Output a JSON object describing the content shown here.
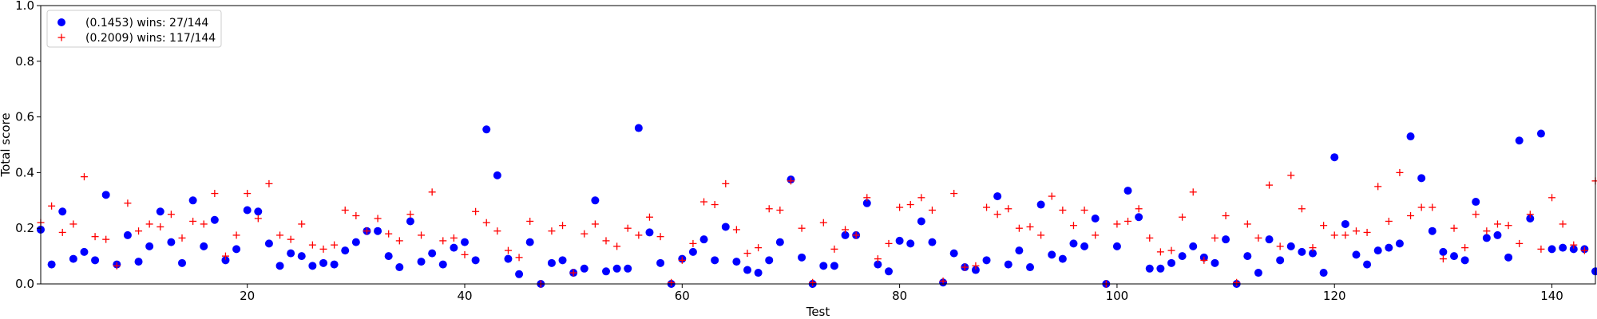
{
  "chart_data": {
    "type": "scatter",
    "xlabel": "Test",
    "ylabel": "Total score",
    "xlim": [
      1,
      144
    ],
    "ylim": [
      0,
      1.0
    ],
    "xticks": [
      20,
      40,
      60,
      80,
      100,
      120,
      140
    ],
    "yticks": [
      0.0,
      0.2,
      0.4,
      0.6,
      0.8,
      1.0
    ],
    "grid": false,
    "legend_position": "top-left",
    "series": [
      {
        "name": "(0.1453) wins: 27/144",
        "marker": "circle",
        "color": "#0000ff",
        "x": [
          1,
          2,
          3,
          4,
          5,
          6,
          7,
          8,
          9,
          10,
          11,
          12,
          13,
          14,
          15,
          16,
          17,
          18,
          19,
          20,
          21,
          22,
          23,
          24,
          25,
          26,
          27,
          28,
          29,
          30,
          31,
          32,
          33,
          34,
          35,
          36,
          37,
          38,
          39,
          40,
          41,
          42,
          43,
          44,
          45,
          46,
          47,
          48,
          49,
          50,
          51,
          52,
          53,
          54,
          55,
          56,
          57,
          58,
          59,
          60,
          61,
          62,
          63,
          64,
          65,
          66,
          67,
          68,
          69,
          70,
          71,
          72,
          73,
          74,
          75,
          76,
          77,
          78,
          79,
          80,
          81,
          82,
          83,
          84,
          85,
          86,
          87,
          88,
          89,
          90,
          91,
          92,
          93,
          94,
          95,
          96,
          97,
          98,
          99,
          100,
          101,
          102,
          103,
          104,
          105,
          106,
          107,
          108,
          109,
          110,
          111,
          112,
          113,
          114,
          115,
          116,
          117,
          118,
          119,
          120,
          121,
          122,
          123,
          124,
          125,
          126,
          127,
          128,
          129,
          130,
          131,
          132,
          133,
          134,
          135,
          136,
          137,
          138,
          139,
          140,
          141,
          142,
          143,
          144
        ],
        "y": [
          0.195,
          0.07,
          0.26,
          0.09,
          0.115,
          0.085,
          0.32,
          0.07,
          0.175,
          0.08,
          0.135,
          0.26,
          0.15,
          0.075,
          0.3,
          0.135,
          0.23,
          0.085,
          0.125,
          0.265,
          0.26,
          0.145,
          0.065,
          0.11,
          0.1,
          0.065,
          0.075,
          0.07,
          0.12,
          0.15,
          0.19,
          0.19,
          0.1,
          0.06,
          0.225,
          0.08,
          0.11,
          0.07,
          0.13,
          0.15,
          0.085,
          0.555,
          0.39,
          0.09,
          0.035,
          0.15,
          0.0,
          0.075,
          0.085,
          0.04,
          0.055,
          0.3,
          0.045,
          0.055,
          0.055,
          0.56,
          0.185,
          0.075,
          0.0,
          0.09,
          0.115,
          0.16,
          0.085,
          0.205,
          0.08,
          0.05,
          0.04,
          0.085,
          0.15,
          0.375,
          0.095,
          0.0,
          0.065,
          0.065,
          0.175,
          0.175,
          0.29,
          0.07,
          0.045,
          0.155,
          0.145,
          0.225,
          0.15,
          0.005,
          0.11,
          0.06,
          0.05,
          0.085,
          0.315,
          0.07,
          0.12,
          0.06,
          0.285,
          0.105,
          0.09,
          0.145,
          0.135,
          0.235,
          0.0,
          0.135,
          0.335,
          0.24,
          0.055,
          0.055,
          0.075,
          0.1,
          0.135,
          0.095,
          0.075,
          0.16,
          0.0,
          0.1,
          0.04,
          0.16,
          0.085,
          0.135,
          0.115,
          0.11,
          0.04,
          0.455,
          0.215,
          0.105,
          0.07,
          0.12,
          0.13,
          0.145,
          0.53,
          0.38,
          0.19,
          0.115,
          0.1,
          0.085,
          0.295,
          0.165,
          0.175,
          0.095,
          0.515,
          0.235,
          0.54,
          0.125,
          0.13,
          0.125,
          0.125,
          0.045
        ]
      },
      {
        "name": "(0.2009) wins: 117/144",
        "marker": "plus",
        "color": "#ff0000",
        "x": [
          1,
          2,
          3,
          4,
          5,
          6,
          7,
          8,
          9,
          10,
          11,
          12,
          13,
          14,
          15,
          16,
          17,
          18,
          19,
          20,
          21,
          22,
          23,
          24,
          25,
          26,
          27,
          28,
          29,
          30,
          31,
          32,
          33,
          34,
          35,
          36,
          37,
          38,
          39,
          40,
          41,
          42,
          43,
          44,
          45,
          46,
          47,
          48,
          49,
          50,
          51,
          52,
          53,
          54,
          55,
          56,
          57,
          58,
          59,
          60,
          61,
          62,
          63,
          64,
          65,
          66,
          67,
          68,
          69,
          70,
          71,
          72,
          73,
          74,
          75,
          76,
          77,
          78,
          79,
          80,
          81,
          82,
          83,
          84,
          85,
          86,
          87,
          88,
          89,
          90,
          91,
          92,
          93,
          94,
          95,
          96,
          97,
          98,
          99,
          100,
          101,
          102,
          103,
          104,
          105,
          106,
          107,
          108,
          109,
          110,
          111,
          112,
          113,
          114,
          115,
          116,
          117,
          118,
          119,
          120,
          121,
          122,
          123,
          124,
          125,
          126,
          127,
          128,
          129,
          130,
          131,
          132,
          133,
          134,
          135,
          136,
          137,
          138,
          139,
          140,
          141,
          142,
          143,
          144
        ],
        "y": [
          0.22,
          0.28,
          0.185,
          0.215,
          0.385,
          0.17,
          0.16,
          0.065,
          0.29,
          0.19,
          0.215,
          0.205,
          0.25,
          0.165,
          0.225,
          0.215,
          0.325,
          0.1,
          0.175,
          0.325,
          0.235,
          0.36,
          0.175,
          0.16,
          0.215,
          0.14,
          0.125,
          0.14,
          0.265,
          0.245,
          0.19,
          0.235,
          0.18,
          0.155,
          0.25,
          0.175,
          0.33,
          0.155,
          0.165,
          0.105,
          0.26,
          0.22,
          0.19,
          0.12,
          0.095,
          0.225,
          0.0,
          0.19,
          0.21,
          0.04,
          0.18,
          0.215,
          0.155,
          0.135,
          0.2,
          0.175,
          0.24,
          0.17,
          0.005,
          0.085,
          0.145,
          0.295,
          0.285,
          0.36,
          0.195,
          0.11,
          0.13,
          0.27,
          0.265,
          0.37,
          0.2,
          0.005,
          0.22,
          0.125,
          0.195,
          0.175,
          0.31,
          0.09,
          0.145,
          0.275,
          0.285,
          0.31,
          0.265,
          0.01,
          0.325,
          0.06,
          0.065,
          0.275,
          0.25,
          0.27,
          0.2,
          0.205,
          0.175,
          0.315,
          0.265,
          0.21,
          0.265,
          0.175,
          0.0,
          0.215,
          0.225,
          0.27,
          0.165,
          0.115,
          0.12,
          0.24,
          0.33,
          0.085,
          0.165,
          0.245,
          0.005,
          0.215,
          0.165,
          0.355,
          0.135,
          0.39,
          0.27,
          0.13,
          0.21,
          0.175,
          0.175,
          0.19,
          0.185,
          0.35,
          0.225,
          0.4,
          0.245,
          0.275,
          0.275,
          0.09,
          0.2,
          0.13,
          0.25,
          0.19,
          0.215,
          0.21,
          0.145,
          0.25,
          0.125,
          0.31,
          0.215,
          0.14,
          0.12,
          0.37
        ]
      }
    ]
  }
}
